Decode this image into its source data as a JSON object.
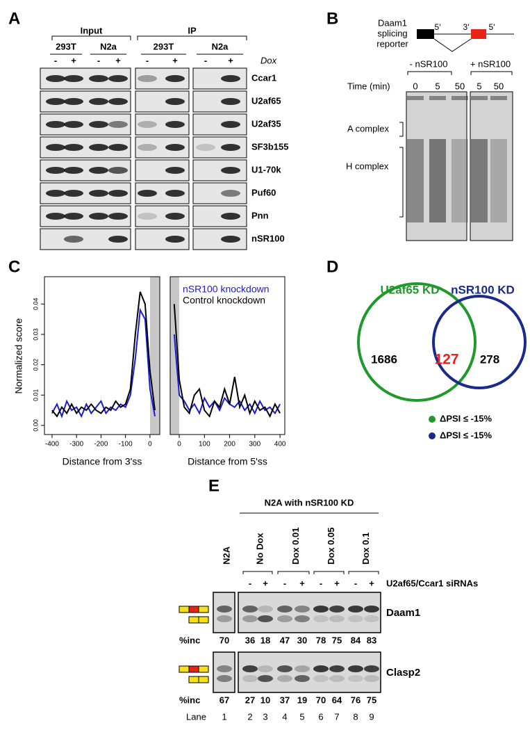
{
  "panel_a": {
    "label": "A",
    "groups": [
      {
        "title": "Input",
        "cells": [
          {
            "name": "293T",
            "dox": [
              "-",
              "+"
            ]
          },
          {
            "name": "N2a",
            "dox": [
              "-",
              "+"
            ]
          }
        ]
      },
      {
        "title": "IP",
        "cells": [
          {
            "name": "293T",
            "dox": [
              "-",
              "+"
            ]
          },
          {
            "name": "N2a",
            "dox": [
              "-",
              "+"
            ]
          }
        ]
      }
    ],
    "dox_label": "Dox",
    "proteins": [
      "Ccar1",
      "U2af65",
      "U2af35",
      "SF3b155",
      "U1-70k",
      "Puf60",
      "Pnn",
      "nSR100"
    ]
  },
  "panel_b": {
    "label": "B",
    "reporter": [
      "Daam1",
      "splicing",
      "reporter"
    ],
    "sites": [
      "5'",
      "3'",
      "5'"
    ],
    "conditions": [
      "- nSR100",
      "+ nSR100"
    ],
    "time_label": "Time (min)",
    "times": [
      "0",
      "5",
      "50",
      "5",
      "50"
    ],
    "complexes": [
      "A complex",
      "H complex"
    ]
  },
  "chart_data": [
    {
      "type": "line",
      "panel_label": "C",
      "y_label": "Normalized score",
      "x_label": "Distance from 3'ss",
      "x": [
        -400,
        -380,
        -360,
        -340,
        -320,
        -300,
        -280,
        -260,
        -240,
        -220,
        -200,
        -180,
        -160,
        -140,
        -120,
        -100,
        -80,
        -60,
        -40,
        -20,
        0,
        20
      ],
      "series": [
        {
          "color": "#1a1adb",
          "values": [
            0.004,
            0.007,
            0.003,
            0.008,
            0.005,
            0.006,
            0.003,
            0.007,
            0.004,
            0.006,
            0.008,
            0.004,
            0.006,
            0.005,
            0.007,
            0.006,
            0.01,
            0.022,
            0.038,
            0.035,
            0.012,
            0.003
          ]
        },
        {
          "color": "#000000",
          "values": [
            0.005,
            0.003,
            0.006,
            0.004,
            0.007,
            0.004,
            0.006,
            0.005,
            0.007,
            0.005,
            0.004,
            0.006,
            0.005,
            0.008,
            0.006,
            0.007,
            0.012,
            0.03,
            0.044,
            0.04,
            0.018,
            0.005
          ]
        }
      ],
      "xlim": [
        -431,
        40
      ],
      "ylim": [
        -0.003,
        0.049
      ],
      "xticks": [
        -400,
        -300,
        -200,
        -100,
        0
      ],
      "yticks": [
        {
          "value": 0,
          "label": "0.00"
        },
        0.01,
        0.02,
        0.03,
        0.04
      ]
    },
    {
      "type": "line",
      "x_label": "Distance from 5'ss",
      "x": [
        -20,
        0,
        20,
        40,
        60,
        80,
        100,
        120,
        140,
        160,
        180,
        200,
        220,
        240,
        260,
        280,
        300,
        320,
        340,
        360,
        380,
        400
      ],
      "series": [
        {
          "name": "nSR100 knockdown",
          "color": "#1a1adb",
          "values": [
            0.03,
            0.01,
            0.008,
            0.005,
            0.007,
            0.004,
            0.009,
            0.006,
            0.008,
            0.005,
            0.009,
            0.007,
            0.006,
            0.008,
            0.005,
            0.007,
            0.004,
            0.008,
            0.005,
            0.006,
            0.004,
            0.007
          ]
        },
        {
          "name": "Control knockdown",
          "color": "#000000",
          "values": [
            0.04,
            0.015,
            0.006,
            0.004,
            0.01,
            0.012,
            0.005,
            0.003,
            0.008,
            0.006,
            0.012,
            0.007,
            0.016,
            0.006,
            0.01,
            0.004,
            0.008,
            0.005,
            0.006,
            0.003,
            0.007,
            0.004
          ]
        }
      ],
      "xlim": [
        -36,
        419
      ],
      "ylim": [
        -0.003,
        0.049
      ],
      "xticks": [
        0,
        100,
        200,
        300,
        400
      ]
    }
  ],
  "panel_d": {
    "label": "D",
    "sets": [
      "U2af65 KD",
      "nSR100 KD"
    ],
    "counts": [
      "1686",
      "127",
      "278"
    ],
    "legend": [
      "ΔPSI ≤ -15%",
      "ΔPSI ≤ -15%"
    ]
  },
  "panel_e": {
    "label": "E",
    "title": "N2A with nSR100 KD",
    "lane1": "N2A",
    "conditions": [
      "No Dox",
      "Dox 0.01",
      "Dox 0.05",
      "Dox 0.1"
    ],
    "signs": [
      "-",
      "+",
      "-",
      "+",
      "-",
      "+",
      "-",
      "+"
    ],
    "sirna_label": "U2af65/Ccar1 siRNAs",
    "genes": [
      {
        "name": "Daam1",
        "inc_label": "%inc",
        "inc": [
          "70",
          "36",
          "18",
          "47",
          "30",
          "78",
          "75",
          "84",
          "83"
        ]
      },
      {
        "name": "Clasp2",
        "inc_label": "%inc",
        "inc": [
          "67",
          "27",
          "10",
          "37",
          "19",
          "70",
          "64",
          "76",
          "75"
        ]
      }
    ],
    "lane_label": "Lane",
    "lanes": [
      "1",
      "2",
      "3",
      "4",
      "5",
      "6",
      "7",
      "8",
      "9"
    ]
  }
}
